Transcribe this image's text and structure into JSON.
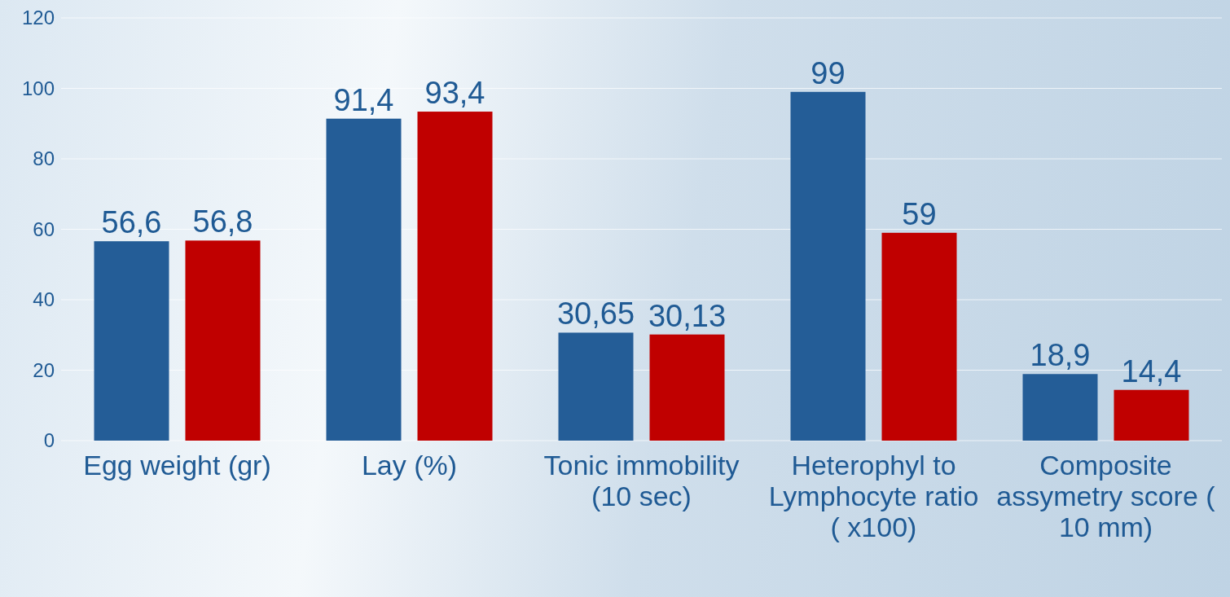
{
  "chart_data": {
    "type": "bar",
    "categories": [
      "Egg weight (gr)",
      "Lay (%)",
      "Tonic immobility (10 sec)",
      "Heterophyl to Lymphocyte ratio ( x100)",
      "Composite assymetry score ( 10 mm)"
    ],
    "series": [
      {
        "color": "#245d97",
        "values": [
          56.6,
          91.4,
          30.65,
          99,
          18.9
        ],
        "value_labels": [
          "56,6",
          "91,4",
          "30,65",
          "99",
          "18,9"
        ]
      },
      {
        "color": "#c00000",
        "values": [
          56.8,
          93.4,
          30.13,
          59,
          14.4
        ],
        "value_labels": [
          "56,8",
          "93,4",
          "30,13",
          "59",
          "14,4"
        ]
      }
    ],
    "ylim": [
      0,
      120
    ],
    "yticks": [
      0,
      20,
      40,
      60,
      80,
      100,
      120
    ],
    "grid": "y"
  }
}
